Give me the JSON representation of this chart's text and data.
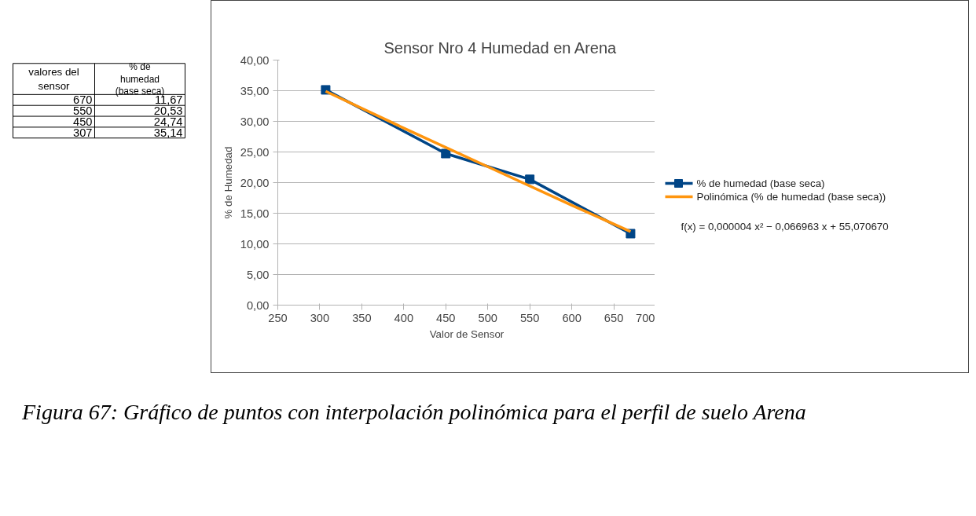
{
  "chart_data": {
    "type": "line",
    "title": "Sensor Nro 4 Humedad en Arena",
    "xlabel": "Valor de Sensor",
    "ylabel": "% de Humedad",
    "series": [
      {
        "name": "% de humedad (base seca)",
        "color": "#004586",
        "marker": "square",
        "values": [
          11.67,
          20.53,
          24.74,
          35.14
        ]
      },
      {
        "name": "Polinómica (% de humedad (base seca))",
        "color": "#ff950e",
        "marker": "none",
        "x": [
          307,
          400,
          500,
          600,
          670
        ],
        "values": [
          34.9,
          28.9,
          22.6,
          16.3,
          12.0
        ]
      }
    ],
    "x": [
      670,
      550,
      450,
      307
    ],
    "xlim": [
      250,
      700
    ],
    "xticks": [
      250,
      300,
      350,
      400,
      450,
      500,
      550,
      600,
      650,
      700
    ],
    "ylim": [
      0,
      40
    ],
    "yticks": [
      {
        "value": 0,
        "label": "0,00"
      },
      {
        "value": 5,
        "label": "5,00"
      },
      {
        "value": 10,
        "label": "10,00"
      },
      {
        "value": 15,
        "label": "15,00"
      },
      {
        "value": 20,
        "label": "20,00"
      },
      {
        "value": 25,
        "label": "25,00"
      },
      {
        "value": 30,
        "label": "30,00"
      },
      {
        "value": 35,
        "label": "35,00"
      },
      {
        "value": 40,
        "label": "40,00"
      }
    ],
    "value_labels": [
      "11,67",
      "20,53",
      "24,74",
      "35,14"
    ],
    "annotations": [
      "valores del sensor",
      "% de humedad (base seca)",
      "f(x) = 0,000004 x² − 0,066963 x + 55,070670",
      "Figura 67: Gráfico de puntos con interpolación polinómica para el perfil de suelo Arena",
      "670",
      "550",
      "450",
      "307"
    ],
    "grid": "y",
    "legend": "right",
    "line_style": "solid"
  }
}
